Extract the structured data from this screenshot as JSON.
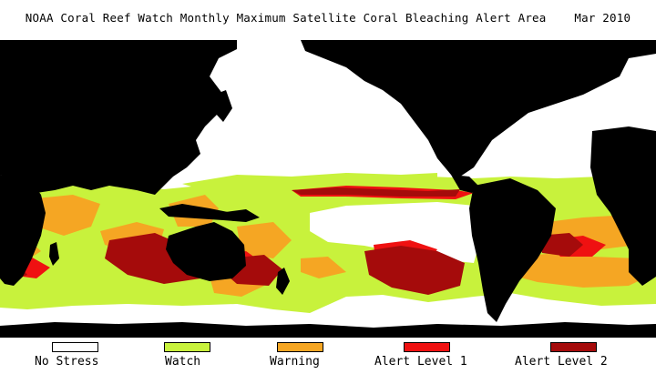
{
  "title": "NOAA Coral Reef Watch Monthly Maximum Satellite Coral Bleaching Alert Area    Mar 2010",
  "colors": {
    "land": "#000000",
    "no_stress": "#ffffff",
    "watch": "#c8f23c",
    "warning": "#f5a623",
    "alert_level_1": "#ef1111",
    "alert_level_2": "#a50b0b"
  },
  "legend": [
    {
      "label": "No Stress",
      "color": "#ffffff"
    },
    {
      "label": "Watch",
      "color": "#c8f23c"
    },
    {
      "label": "Warning",
      "color": "#f5a623"
    },
    {
      "label": "Alert Level 1",
      "color": "#ef1111"
    },
    {
      "label": "Alert Level 2",
      "color": "#a50b0b"
    }
  ]
}
